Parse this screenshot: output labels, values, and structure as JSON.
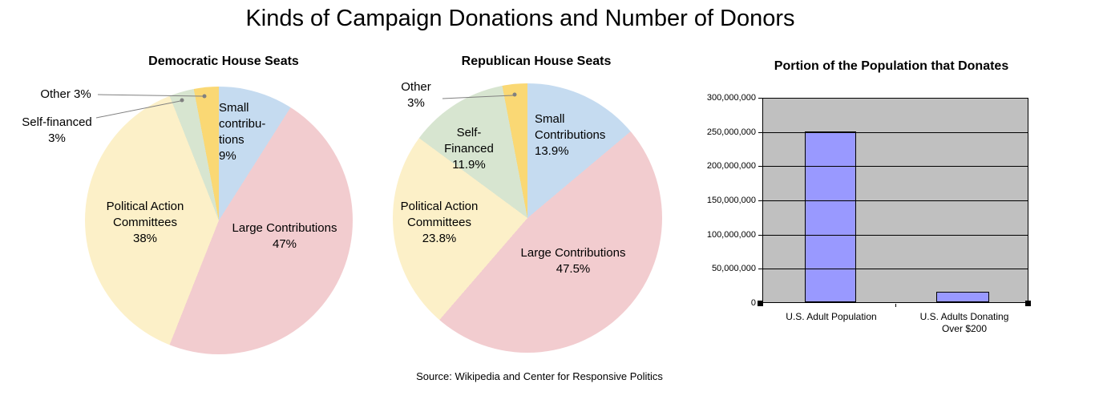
{
  "page": {
    "title": "Kinds of Campaign Donations and Number of Donors",
    "source": "Source: Wikipedia and Center for Responsive Politics"
  },
  "colors": {
    "blue": "#C5DBF0",
    "pink": "#F2CCCF",
    "cream": "#FCF0C8",
    "green": "#D7E5D0",
    "gold": "#FAD874",
    "bar_fill": "#9999FF",
    "plot_bg": "#C0C0C0",
    "leader": "#808080"
  },
  "chart_data": [
    {
      "type": "pie",
      "title": "Democratic House Seats",
      "legend_position": "none",
      "slices": [
        {
          "label": "Small contributions",
          "pct": 9,
          "color_key": "blue",
          "display": "Small\ncontribu-\ntions\n9%"
        },
        {
          "label": "Large Contributions",
          "pct": 47,
          "color_key": "pink",
          "display": "Large Contributions\n47%"
        },
        {
          "label": "Political Action Committees",
          "pct": 38,
          "color_key": "cream",
          "display": "Political Action\nCommittees\n38%"
        },
        {
          "label": "Self-financed",
          "pct": 3,
          "color_key": "green",
          "display": "Self-financed\n3%"
        },
        {
          "label": "Other",
          "pct": 3,
          "color_key": "gold",
          "display": "Other 3%"
        }
      ]
    },
    {
      "type": "pie",
      "title": "Republican House Seats",
      "legend_position": "none",
      "slices": [
        {
          "label": "Small Contributions",
          "pct": 13.9,
          "color_key": "blue",
          "display": "Small\nContributions\n13.9%"
        },
        {
          "label": "Large Contributions",
          "pct": 47.5,
          "color_key": "pink",
          "display": "Large Contributions\n47.5%"
        },
        {
          "label": "Political Action Committees",
          "pct": 23.8,
          "color_key": "cream",
          "display": "Political Action\nCommittees\n23.8%"
        },
        {
          "label": "Self-Financed",
          "pct": 11.9,
          "color_key": "green",
          "display": "Self-\nFinanced\n11.9%"
        },
        {
          "label": "Other",
          "pct": 3,
          "color_key": "gold",
          "display": "Other\n3%"
        }
      ]
    },
    {
      "type": "bar",
      "title": "Portion of the Population that Donates",
      "categories": [
        "U.S. Adult Population",
        "U.S. Adults Donating\nOver $200"
      ],
      "values": [
        252000000,
        15000000
      ],
      "ylim": [
        0,
        300000000
      ],
      "ytick_step": 50000000,
      "ytick_labels": [
        "300,000,000",
        "250,000,000",
        "200,000,000",
        "150,000,000",
        "100,000,000",
        "50,000,000",
        "0"
      ],
      "grid": true,
      "legend_position": "none"
    }
  ]
}
